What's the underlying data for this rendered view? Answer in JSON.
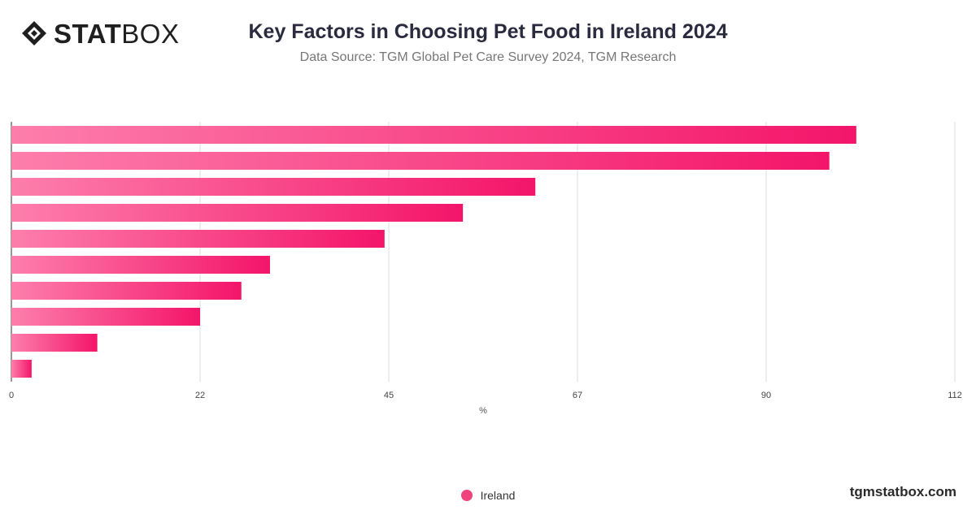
{
  "header": {
    "logo_bold": "STAT",
    "logo_light": "BOX",
    "logo_icon": "statbox-diamond-icon",
    "title": "Key Factors in Choosing Pet Food in Ireland 2024",
    "subtitle": "Data Source: TGM Global Pet Care Survey 2024, TGM Research"
  },
  "legend": {
    "label": "Ireland",
    "color": "#f0447f"
  },
  "footer": {
    "site": "tgmstatbox.com"
  },
  "colors": {
    "bar_start": "#fd7eab",
    "bar_end": "#f4156a",
    "grid": "#dddddd",
    "axis": "#333333"
  },
  "chart_data": {
    "type": "bar",
    "orientation": "horizontal",
    "title": "Key Factors in Choosing Pet Food in Ireland 2024",
    "subtitle": "Data Source: TGM Global Pet Care Survey 2024, TGM Research",
    "xlabel": "%",
    "ylabel": "",
    "xlim": [
      0,
      112
    ],
    "ticks": [
      "0",
      "22",
      "45",
      "67",
      "90",
      "112"
    ],
    "tick_values": [
      0,
      22.4,
      44.8,
      67.2,
      89.6,
      112
    ],
    "grid": true,
    "legend_position": "bottom-center",
    "series": [
      {
        "name": "Ireland",
        "values": [
          100.3,
          97.1,
          62.2,
          53.6,
          44.3,
          30.7,
          27.3,
          22.4,
          10.2,
          2.4
        ]
      }
    ]
  }
}
